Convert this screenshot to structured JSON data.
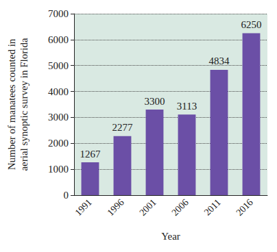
{
  "chart_data": {
    "type": "bar",
    "x_label": "Year",
    "y_label": "Number of manatees counted in aerial synoptic survey in Florida",
    "categories": [
      "1991",
      "1996",
      "2001",
      "2006",
      "2011",
      "2016"
    ],
    "values": [
      1267,
      2277,
      3300,
      3113,
      4834,
      6250
    ],
    "color": "#6b4fa6",
    "ylim": [
      0,
      7000
    ],
    "yticks": [
      0,
      1000,
      2000,
      3000,
      4000,
      5000,
      6000,
      7000
    ],
    "grid": true,
    "data_labels": true
  }
}
